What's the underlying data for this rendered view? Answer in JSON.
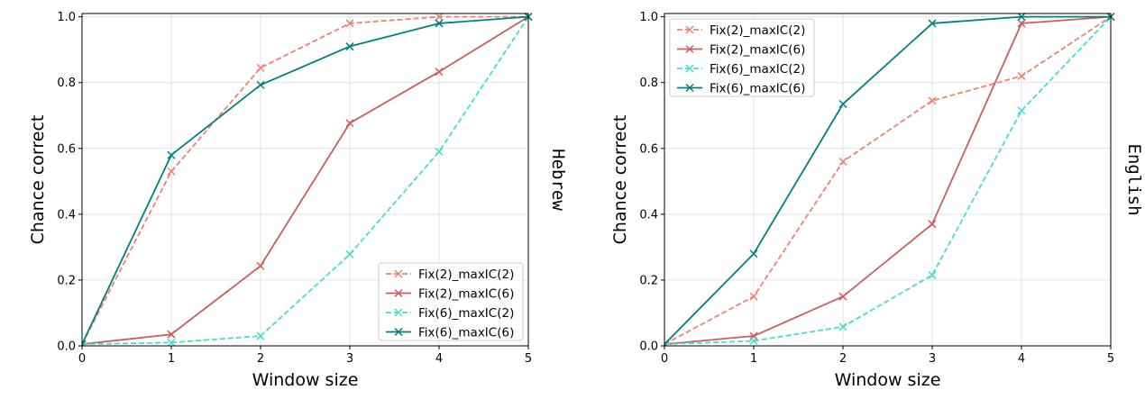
{
  "chart_data": [
    {
      "type": "line",
      "side_label": "Hebrew",
      "xlabel": "Window size",
      "ylabel": "Chance correct",
      "xlim": [
        0,
        5
      ],
      "ylim": [
        0,
        1.01
      ],
      "xticks": [
        "0",
        "1",
        "2",
        "3",
        "4",
        "5"
      ],
      "yticks": [
        "0.0",
        "0.2",
        "0.4",
        "0.6",
        "0.8",
        "1.0"
      ],
      "grid": true,
      "legend_position": "lower-right",
      "x": [
        0,
        1,
        2,
        3,
        4,
        5
      ],
      "series": [
        {
          "name": "Fix(2)_maxIC(2)",
          "color": "#f08070",
          "dash": true,
          "values": [
            0.005,
            0.53,
            0.845,
            0.98,
            1.0,
            1.0
          ]
        },
        {
          "name": "Fix(2)_maxIC(6)",
          "color": "#cd5c5c",
          "dash": false,
          "values": [
            0.005,
            0.035,
            0.243,
            0.677,
            0.833,
            1.0
          ]
        },
        {
          "name": "Fix(6)_maxIC(2)",
          "color": "#40e0d0",
          "dash": true,
          "values": [
            0.005,
            0.01,
            0.03,
            0.278,
            0.59,
            1.0
          ]
        },
        {
          "name": "Fix(6)_maxIC(6)",
          "color": "#008080",
          "dash": false,
          "values": [
            0.005,
            0.58,
            0.793,
            0.91,
            0.98,
            1.0
          ]
        }
      ]
    },
    {
      "type": "line",
      "side_label": "English",
      "xlabel": "Window size",
      "ylabel": "Chance correct",
      "xlim": [
        0,
        5
      ],
      "ylim": [
        0,
        1.01
      ],
      "xticks": [
        "0",
        "1",
        "2",
        "3",
        "4",
        "5"
      ],
      "yticks": [
        "0.0",
        "0.2",
        "0.4",
        "0.6",
        "0.8",
        "1.0"
      ],
      "grid": true,
      "legend_position": "upper-left",
      "x": [
        0,
        1,
        2,
        3,
        4,
        5
      ],
      "series": [
        {
          "name": "Fix(2)_maxIC(2)",
          "color": "#f08070",
          "dash": true,
          "values": [
            0.005,
            0.15,
            0.56,
            0.745,
            0.82,
            1.0
          ]
        },
        {
          "name": "Fix(2)_maxIC(6)",
          "color": "#cd5c5c",
          "dash": false,
          "values": [
            0.005,
            0.03,
            0.15,
            0.37,
            0.98,
            1.0
          ]
        },
        {
          "name": "Fix(6)_maxIC(2)",
          "color": "#40e0d0",
          "dash": true,
          "values": [
            0.005,
            0.015,
            0.058,
            0.215,
            0.715,
            1.0
          ]
        },
        {
          "name": "Fix(6)_maxIC(6)",
          "color": "#008080",
          "dash": false,
          "values": [
            0.005,
            0.28,
            0.735,
            0.98,
            1.0,
            1.0
          ]
        }
      ]
    }
  ]
}
